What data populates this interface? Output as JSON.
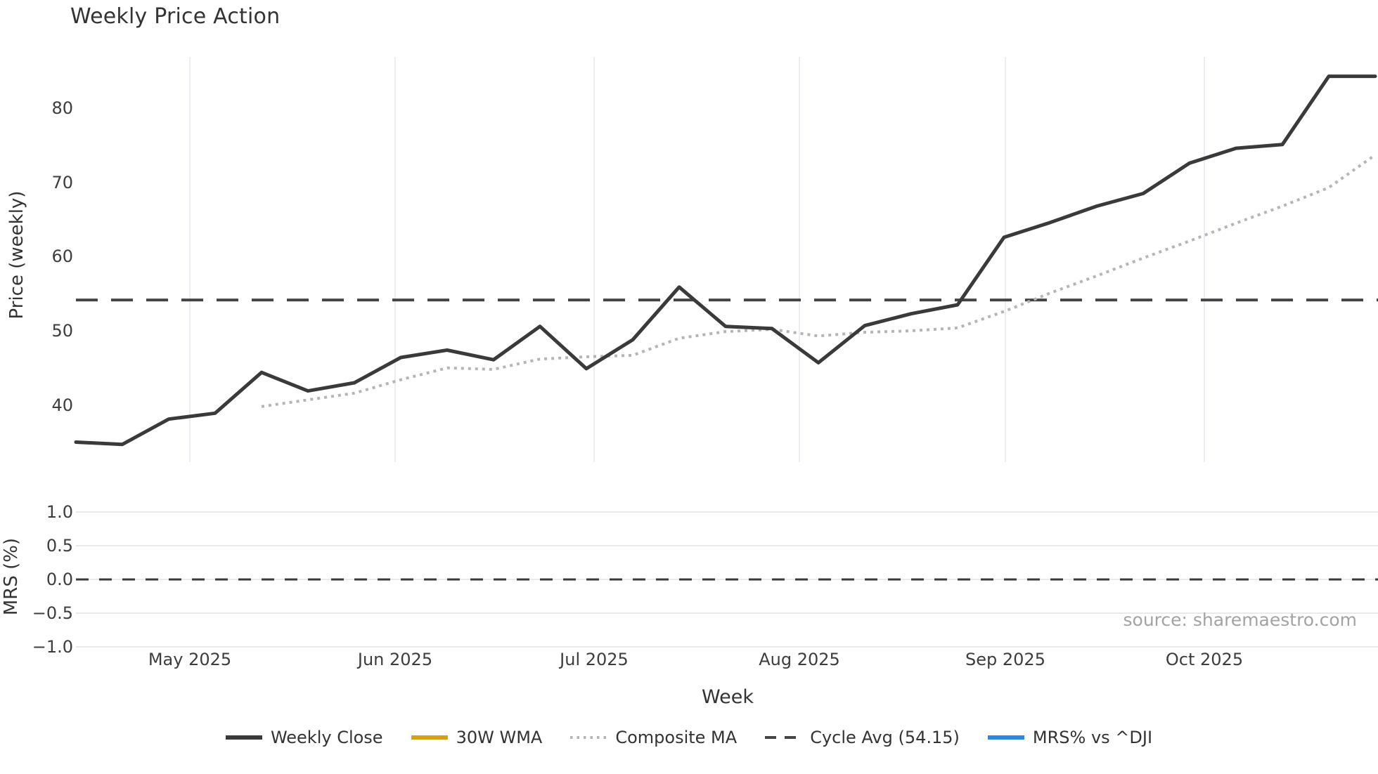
{
  "title": "Weekly Price Action",
  "price_panel": {
    "ylabel": "Price (weekly)",
    "yticks": [
      "40",
      "50",
      "60",
      "70",
      "80"
    ],
    "ytick_values": [
      40,
      50,
      60,
      70,
      80
    ]
  },
  "mrs_panel": {
    "ylabel": "MRS (%)",
    "yticks": [
      "−1.0",
      "−0.5",
      "0.0",
      "0.5",
      "1.0"
    ],
    "ytick_values": [
      -1.0,
      -0.5,
      0.0,
      0.5,
      1.0
    ]
  },
  "xaxis": {
    "label": "Week",
    "ticks": [
      "May 2025",
      "Jun 2025",
      "Jul 2025",
      "Aug 2025",
      "Sep 2025",
      "Oct 2025"
    ]
  },
  "legend": [
    {
      "label": "Weekly Close",
      "style": "solid",
      "color": "#3a3a3a"
    },
    {
      "label": "30W WMA",
      "style": "solid",
      "color": "#d4a017"
    },
    {
      "label": "Composite MA",
      "style": "dotted",
      "color": "#b5b5b5"
    },
    {
      "label": "Cycle Avg (54.15)",
      "style": "dashed",
      "color": "#454545"
    },
    {
      "label": "MRS% vs ^DJI",
      "style": "solid",
      "color": "#2b87e0"
    }
  ],
  "source": "source: sharemaestro.com",
  "chart_data": {
    "type": "line",
    "title": "Weekly Price Action",
    "xlabel": "Week",
    "x_weeks": [
      "2025-04-14",
      "2025-04-21",
      "2025-04-28",
      "2025-05-05",
      "2025-05-12",
      "2025-05-19",
      "2025-05-26",
      "2025-06-02",
      "2025-06-09",
      "2025-06-16",
      "2025-06-23",
      "2025-06-30",
      "2025-07-07",
      "2025-07-14",
      "2025-07-21",
      "2025-07-28",
      "2025-08-04",
      "2025-08-11",
      "2025-08-18",
      "2025-08-25",
      "2025-09-01",
      "2025-09-08",
      "2025-09-15",
      "2025-09-22",
      "2025-09-29",
      "2025-10-06",
      "2025-10-13",
      "2025-10-20",
      "2025-10-27"
    ],
    "series": [
      {
        "name": "Weekly Close",
        "style": "solid",
        "color": "#3a3a3a",
        "panel": "price",
        "values": [
          35.0,
          34.7,
          38.1,
          38.9,
          44.4,
          41.9,
          43.0,
          46.4,
          47.4,
          46.1,
          50.6,
          44.9,
          48.8,
          55.9,
          50.6,
          50.3,
          45.7,
          50.7,
          52.3,
          53.5,
          62.6,
          64.6,
          66.8,
          68.5,
          72.6,
          74.6,
          75.1,
          84.3,
          84.3
        ]
      },
      {
        "name": "Composite MA",
        "style": "dotted",
        "color": "#b5b5b5",
        "panel": "price",
        "values": [
          null,
          null,
          null,
          null,
          39.8,
          40.7,
          41.6,
          43.4,
          45.0,
          44.8,
          46.2,
          46.5,
          46.7,
          49.0,
          49.9,
          50.2,
          49.3,
          49.8,
          50.0,
          50.4,
          52.6,
          55.1,
          57.4,
          59.8,
          62.1,
          64.5,
          66.8,
          69.3,
          73.7
        ]
      },
      {
        "name": "30W WMA",
        "style": "solid",
        "color": "#d4a017",
        "panel": "price",
        "values": [],
        "note": "in legend only — no goldenrod line visible in plotted range"
      },
      {
        "name": "MRS% vs ^DJI",
        "style": "solid",
        "color": "#2b87e0",
        "panel": "mrs",
        "values": [],
        "note": "in legend only — no blue line visible in MRS panel"
      }
    ],
    "reference_lines": [
      {
        "name": "Cycle Avg",
        "panel": "price",
        "value": 54.15,
        "style": "dashed",
        "color": "#454545"
      },
      {
        "name": "MRS zero",
        "panel": "mrs",
        "value": 0.0,
        "style": "dashed",
        "color": "#3b3b3b"
      }
    ],
    "price_ylim": [
      32.3,
      86.9
    ],
    "mrs_ylim": [
      -1.2,
      1.2
    ],
    "grid": "vertical month gridlines on price panel; horizontal gridlines on MRS panel",
    "legend_position": "bottom center"
  }
}
